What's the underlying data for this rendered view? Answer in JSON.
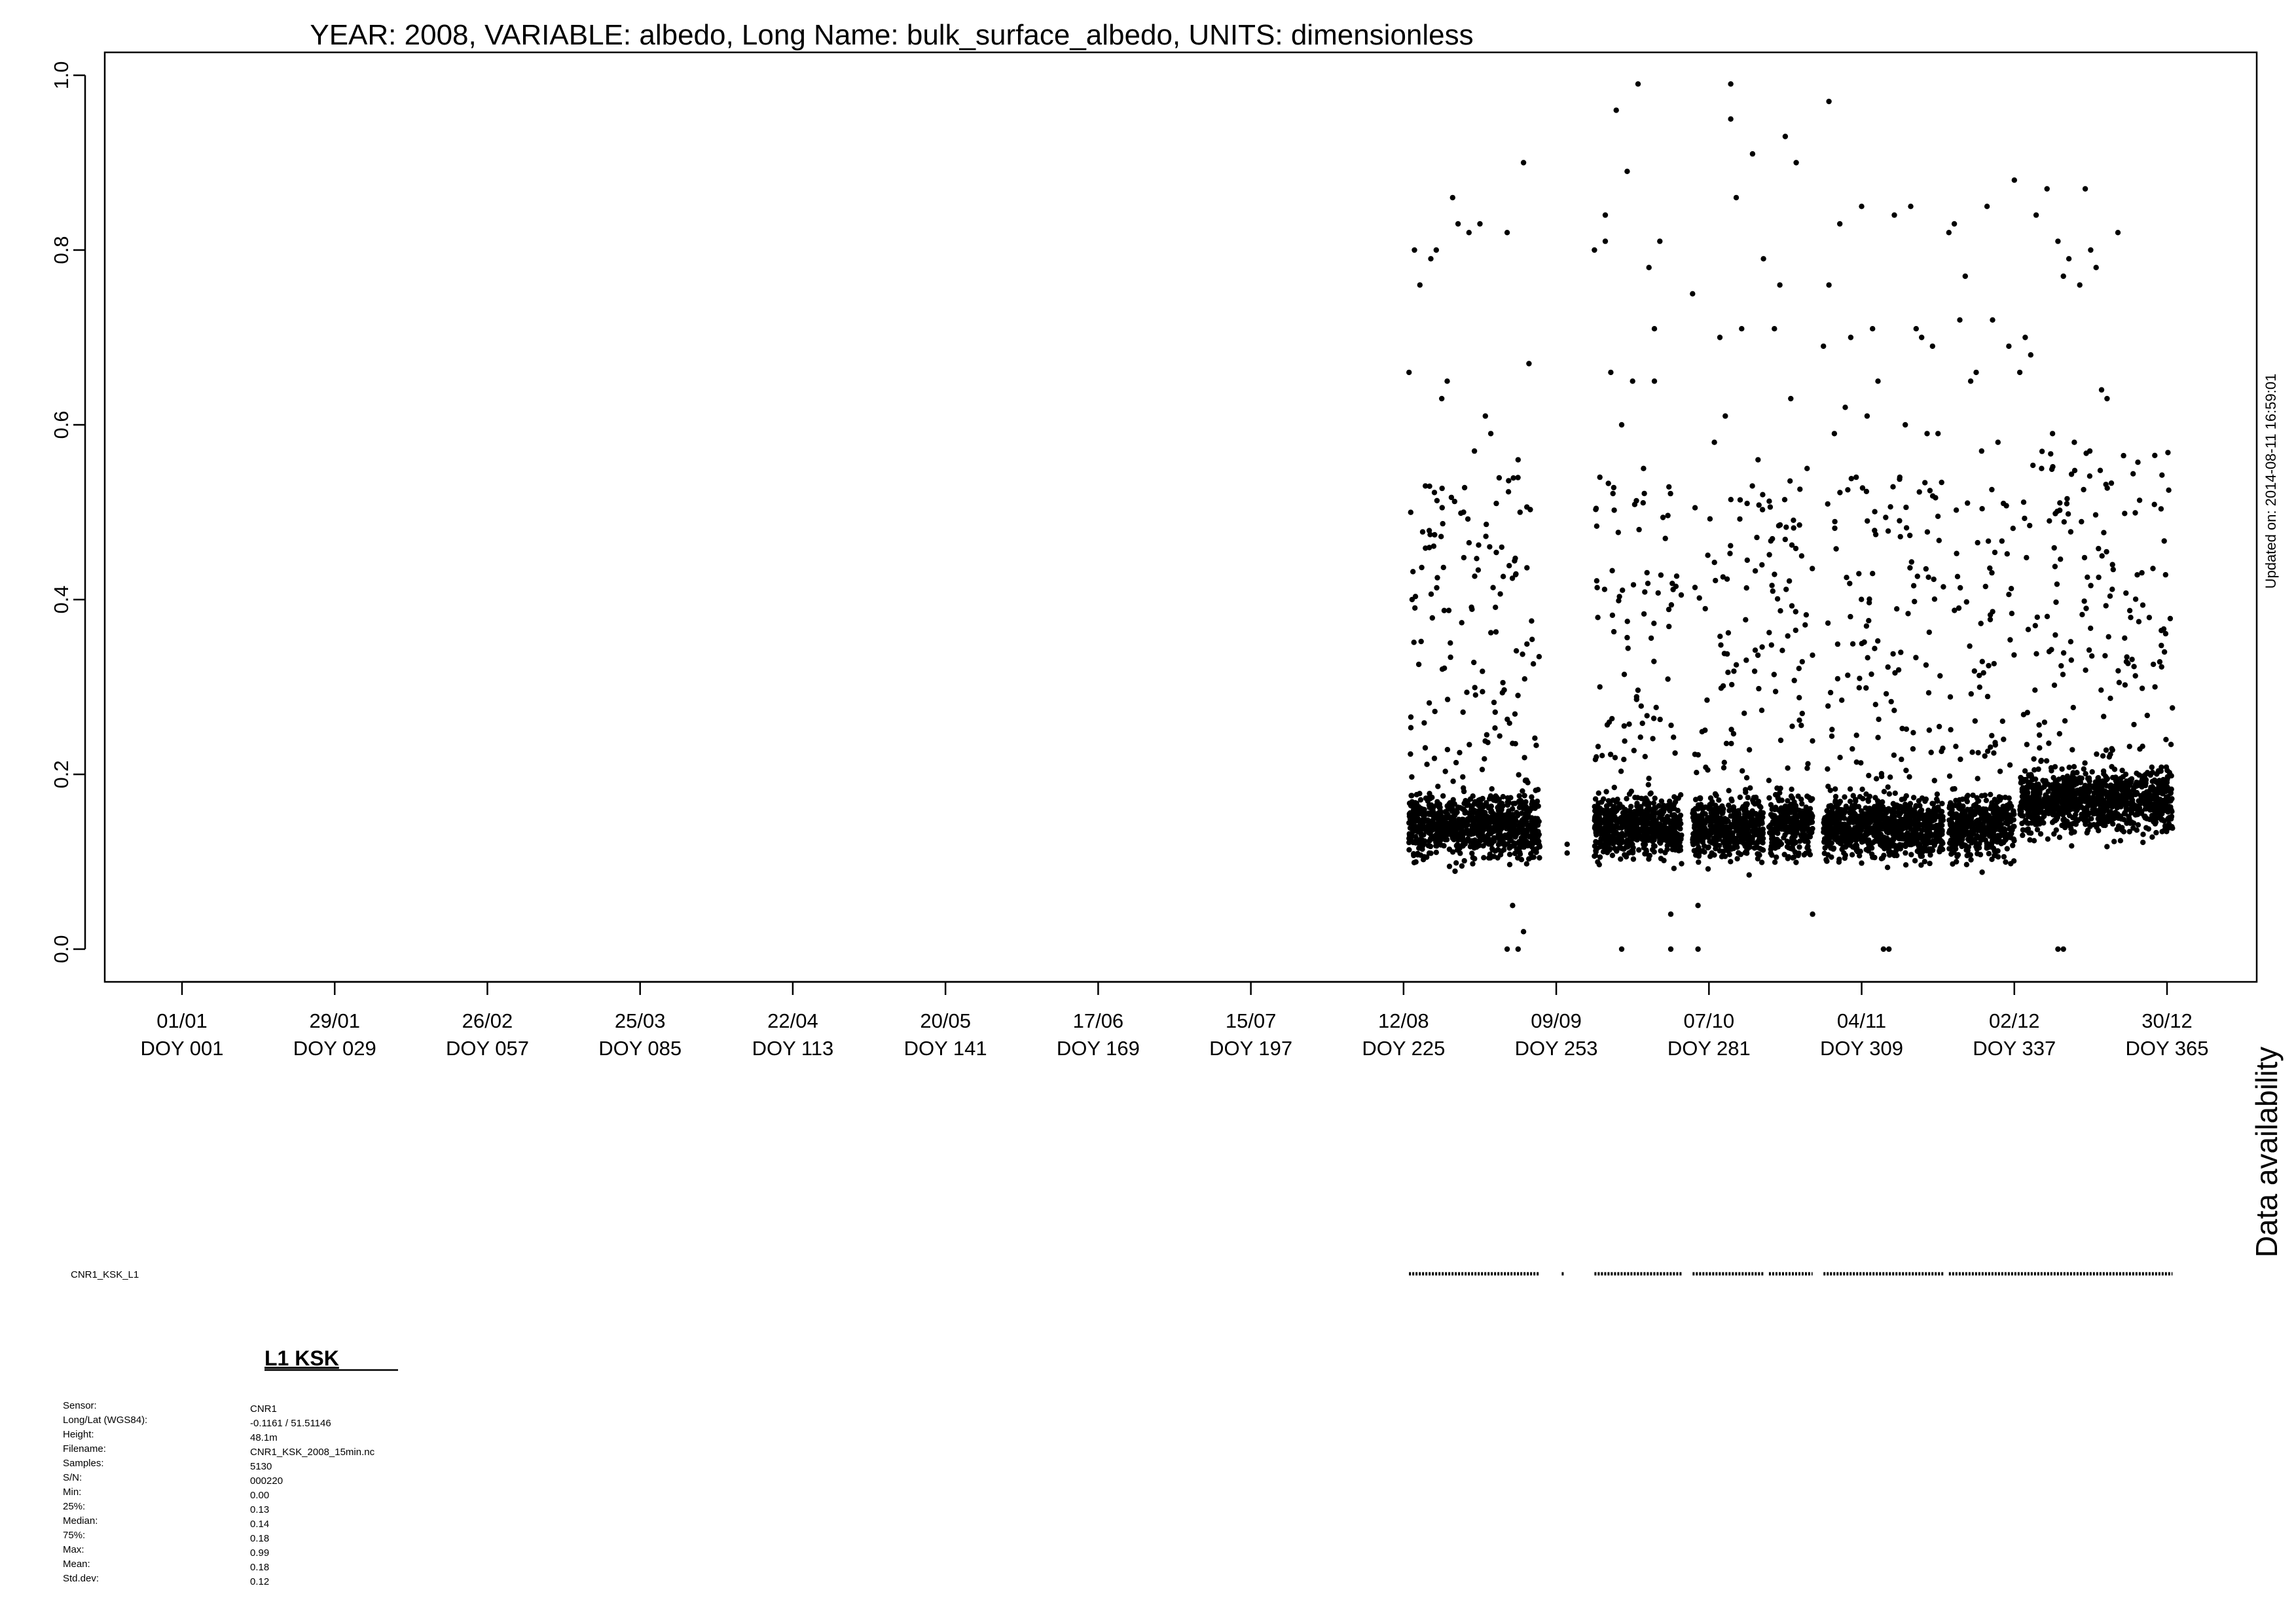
{
  "chart_data": {
    "type": "scatter",
    "title": "YEAR: 2008, VARIABLE: albedo, Long Name: bulk_surface_albedo, UNITS: dimensionless",
    "xlabel": "",
    "ylabel": "",
    "xlim": [
      1,
      366
    ],
    "ylim": [
      0,
      1.0
    ],
    "y_ticks": [
      "0.0",
      "0.2",
      "0.4",
      "0.6",
      "0.8",
      "1.0"
    ],
    "x_ticks": [
      {
        "doy": 1,
        "date": "01/01",
        "label": "DOY 001"
      },
      {
        "doy": 29,
        "date": "29/01",
        "label": "DOY 029"
      },
      {
        "doy": 57,
        "date": "26/02",
        "label": "DOY 057"
      },
      {
        "doy": 85,
        "date": "25/03",
        "label": "DOY 085"
      },
      {
        "doy": 113,
        "date": "22/04",
        "label": "DOY 113"
      },
      {
        "doy": 141,
        "date": "20/05",
        "label": "DOY 141"
      },
      {
        "doy": 169,
        "date": "17/06",
        "label": "DOY 169"
      },
      {
        "doy": 197,
        "date": "15/07",
        "label": "DOY 197"
      },
      {
        "doy": 225,
        "date": "12/08",
        "label": "DOY 225"
      },
      {
        "doy": 253,
        "date": "09/09",
        "label": "DOY 253"
      },
      {
        "doy": 281,
        "date": "07/10",
        "label": "DOY 281"
      },
      {
        "doy": 309,
        "date": "04/11",
        "label": "DOY 309"
      },
      {
        "doy": 337,
        "date": "02/12",
        "label": "DOY 337"
      },
      {
        "doy": 365,
        "date": "30/12",
        "label": "DOY 365"
      }
    ],
    "grid": false,
    "series": [
      {
        "name": "",
        "color": "#000000",
        "segments": [
          {
            "x_start": 226,
            "x_end": 250,
            "y_base": 0.14,
            "y_spread": 0.03
          },
          {
            "x_start": 260,
            "x_end": 276,
            "y_base": 0.14,
            "y_spread": 0.03
          },
          {
            "x_start": 278,
            "x_end": 291,
            "y_base": 0.14,
            "y_spread": 0.03
          },
          {
            "x_start": 292,
            "x_end": 300,
            "y_base": 0.14,
            "y_spread": 0.03
          },
          {
            "x_start": 302,
            "x_end": 324,
            "y_base": 0.14,
            "y_spread": 0.03
          },
          {
            "x_start": 325,
            "x_end": 337,
            "y_base": 0.14,
            "y_spread": 0.03
          },
          {
            "x_start": 338,
            "x_end": 366,
            "y_base": 0.17,
            "y_spread": 0.03
          }
        ],
        "points": [
          [
            226,
            0.66
          ],
          [
            227,
            0.8
          ],
          [
            228,
            0.76
          ],
          [
            229,
            0.53
          ],
          [
            230,
            0.79
          ],
          [
            231,
            0.8
          ],
          [
            232,
            0.63
          ],
          [
            233,
            0.65
          ],
          [
            234,
            0.86
          ],
          [
            235,
            0.83
          ],
          [
            236,
            0.5
          ],
          [
            237,
            0.82
          ],
          [
            238,
            0.57
          ],
          [
            239,
            0.83
          ],
          [
            240,
            0.61
          ],
          [
            241,
            0.59
          ],
          [
            242,
            0.51
          ],
          [
            243,
            0.46
          ],
          [
            244,
            0.82
          ],
          [
            246,
            0.56
          ],
          [
            247,
            0.9
          ],
          [
            248,
            0.67
          ],
          [
            246,
            0.0
          ],
          [
            247,
            0.02
          ],
          [
            244,
            0.0
          ],
          [
            245,
            0.05
          ],
          [
            255,
            0.11
          ],
          [
            255,
            0.12
          ],
          [
            260,
            0.8
          ],
          [
            261,
            0.54
          ],
          [
            262,
            0.81
          ],
          [
            262,
            0.84
          ],
          [
            263,
            0.66
          ],
          [
            264,
            0.96
          ],
          [
            265,
            0.6
          ],
          [
            266,
            0.89
          ],
          [
            267,
            0.65
          ],
          [
            268,
            0.99
          ],
          [
            269,
            0.55
          ],
          [
            270,
            0.78
          ],
          [
            271,
            0.71
          ],
          [
            271,
            0.65
          ],
          [
            272,
            0.81
          ],
          [
            273,
            0.47
          ],
          [
            265,
            0.0
          ],
          [
            274,
            0.0
          ],
          [
            274,
            0.04
          ],
          [
            278,
            0.75
          ],
          [
            279,
            0.0
          ],
          [
            279,
            0.05
          ],
          [
            282,
            0.58
          ],
          [
            283,
            0.7
          ],
          [
            284,
            0.61
          ],
          [
            285,
            0.99
          ],
          [
            285,
            0.95
          ],
          [
            286,
            0.86
          ],
          [
            287,
            0.71
          ],
          [
            288,
            0.51
          ],
          [
            289,
            0.91
          ],
          [
            290,
            0.56
          ],
          [
            291,
            0.79
          ],
          [
            293,
            0.71
          ],
          [
            294,
            0.76
          ],
          [
            295,
            0.93
          ],
          [
            296,
            0.63
          ],
          [
            297,
            0.9
          ],
          [
            298,
            0.45
          ],
          [
            299,
            0.55
          ],
          [
            300,
            0.04
          ],
          [
            302,
            0.69
          ],
          [
            303,
            0.97
          ],
          [
            303,
            0.76
          ],
          [
            304,
            0.59
          ],
          [
            305,
            0.83
          ],
          [
            306,
            0.62
          ],
          [
            307,
            0.7
          ],
          [
            308,
            0.54
          ],
          [
            309,
            0.85
          ],
          [
            310,
            0.61
          ],
          [
            311,
            0.71
          ],
          [
            312,
            0.65
          ],
          [
            313,
            0.0
          ],
          [
            314,
            0.0
          ],
          [
            315,
            0.84
          ],
          [
            316,
            0.54
          ],
          [
            317,
            0.6
          ],
          [
            318,
            0.85
          ],
          [
            319,
            0.71
          ],
          [
            320,
            0.7
          ],
          [
            321,
            0.59
          ],
          [
            322,
            0.69
          ],
          [
            323,
            0.59
          ],
          [
            325,
            0.82
          ],
          [
            326,
            0.83
          ],
          [
            327,
            0.72
          ],
          [
            328,
            0.77
          ],
          [
            329,
            0.65
          ],
          [
            330,
            0.66
          ],
          [
            331,
            0.57
          ],
          [
            332,
            0.85
          ],
          [
            333,
            0.72
          ],
          [
            334,
            0.58
          ],
          [
            335,
            0.51
          ],
          [
            336,
            0.69
          ],
          [
            337,
            0.88
          ],
          [
            338,
            0.66
          ],
          [
            339,
            0.7
          ],
          [
            340,
            0.68
          ],
          [
            341,
            0.84
          ],
          [
            342,
            0.55
          ],
          [
            343,
            0.87
          ],
          [
            344,
            0.59
          ],
          [
            345,
            0.81
          ],
          [
            346,
            0.77
          ],
          [
            347,
            0.79
          ],
          [
            348,
            0.58
          ],
          [
            349,
            0.76
          ],
          [
            350,
            0.87
          ],
          [
            351,
            0.8
          ],
          [
            352,
            0.78
          ],
          [
            353,
            0.64
          ],
          [
            354,
            0.63
          ],
          [
            355,
            0.44
          ],
          [
            356,
            0.82
          ],
          [
            345,
            0.0
          ],
          [
            346,
            0.0
          ]
        ]
      }
    ]
  },
  "updated_on": "Updated on: 2014-08-11 16:59:01",
  "availability": {
    "title": "Data availability",
    "series_label": "CNR1_KSK_L1",
    "segments": [
      [
        226,
        250
      ],
      [
        254,
        254
      ],
      [
        260,
        276
      ],
      [
        278,
        291
      ],
      [
        292,
        300
      ],
      [
        302,
        324
      ],
      [
        325,
        366
      ]
    ]
  },
  "info": {
    "heading": "L1 KSK",
    "rows": [
      {
        "label": "Sensor:",
        "value": "CNR1"
      },
      {
        "label": "Long/Lat (WGS84):",
        "value": "-0.1161 / 51.51146"
      },
      {
        "label": "Height:",
        "value": "48.1m"
      },
      {
        "label": "Filename:",
        "value": "CNR1_KSK_2008_15min.nc"
      },
      {
        "label": "Samples:",
        "value": "5130"
      },
      {
        "label": "S/N:",
        "value": "000220"
      },
      {
        "label": "Min:",
        "value": "0.00"
      },
      {
        "label": "25%:",
        "value": "0.13"
      },
      {
        "label": "Median:",
        "value": "0.14"
      },
      {
        "label": "75%:",
        "value": "0.18"
      },
      {
        "label": "Max:",
        "value": "0.99"
      },
      {
        "label": "Mean:",
        "value": "0.18"
      },
      {
        "label": "Std.dev:",
        "value": "0.12"
      }
    ]
  }
}
